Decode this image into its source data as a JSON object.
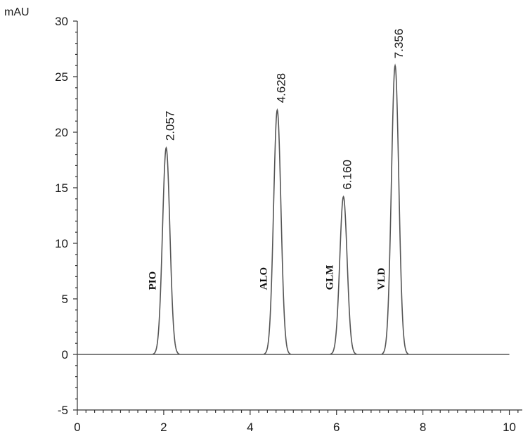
{
  "chart_data": {
    "type": "line",
    "title": "",
    "xlabel": "",
    "ylabel": "mAU",
    "xlim": [
      0,
      10.3
    ],
    "ylim": [
      -5,
      30
    ],
    "x_ticks": [
      0,
      2,
      4,
      6,
      8,
      10
    ],
    "y_ticks": [
      -5,
      0,
      5,
      10,
      15,
      20,
      25,
      30
    ],
    "grid": false,
    "legend": "none",
    "baseline_end": 10,
    "line_color": "#555555",
    "peaks": [
      {
        "compound": "PIO",
        "retention_time": 2.057,
        "label": "2.057",
        "height": 18.6,
        "width": 0.085
      },
      {
        "compound": "ALO",
        "retention_time": 4.628,
        "label": "4.628",
        "height": 22.0,
        "width": 0.085
      },
      {
        "compound": "GLM",
        "retention_time": 6.16,
        "label": "6.160",
        "height": 14.2,
        "width": 0.085
      },
      {
        "compound": "VLD",
        "retention_time": 7.356,
        "label": "7.356",
        "height": 26.0,
        "width": 0.085
      }
    ]
  }
}
